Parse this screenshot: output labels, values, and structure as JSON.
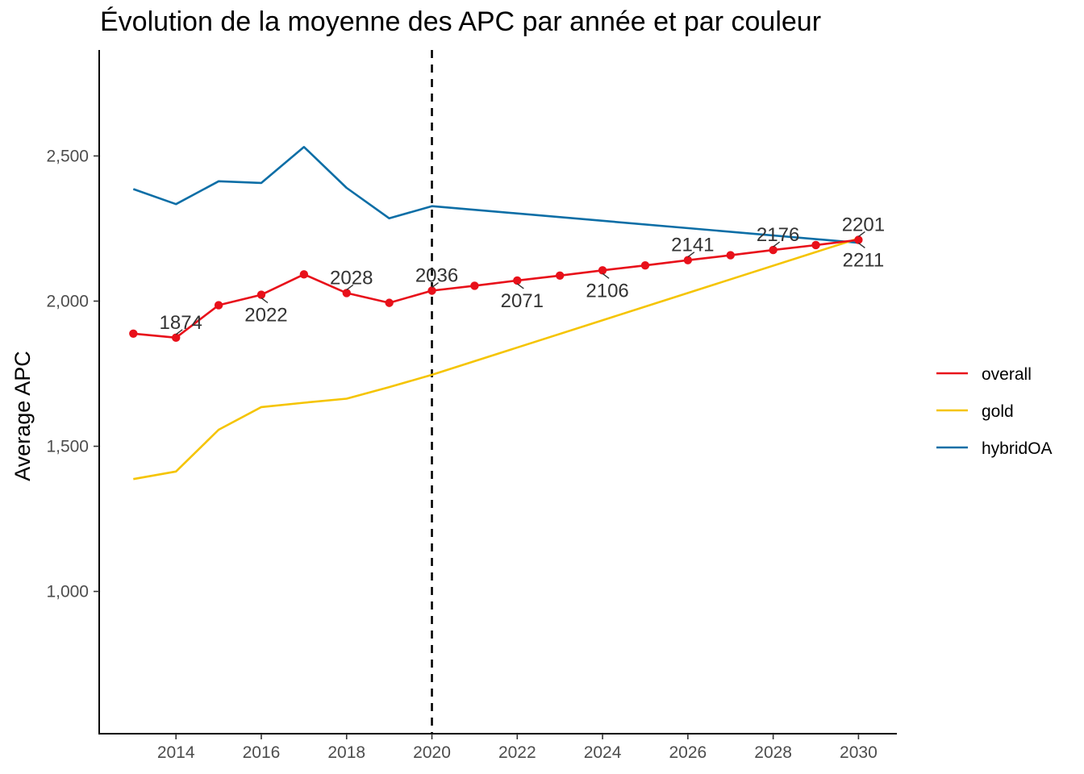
{
  "chart_data": {
    "type": "line",
    "title": "Évolution de la moyenne des APC par année et par couleur",
    "xlabel": "",
    "ylabel": "Average APC",
    "xlim": [
      2012.2,
      2030.9
    ],
    "ylim": [
      510,
      2865
    ],
    "x_ticks": [
      2014,
      2016,
      2018,
      2020,
      2022,
      2024,
      2026,
      2028,
      2030
    ],
    "x_tick_labels": [
      "2014",
      "2016",
      "2018",
      "2020",
      "2022",
      "2024",
      "2026",
      "2028",
      "2030"
    ],
    "y_ticks": [
      1000,
      1500,
      2000,
      2500
    ],
    "y_tick_labels": [
      "1,000",
      "1,500",
      "2,000",
      "2,500"
    ],
    "grid": false,
    "legend_position": "right",
    "vline": {
      "x": 2020,
      "style": "dashed",
      "color": "#000000"
    },
    "series": [
      {
        "name": "overall",
        "color": "#e8101a",
        "markers": true,
        "points": [
          [
            2013,
            1888
          ],
          [
            2014,
            1874
          ],
          [
            2015,
            1986
          ],
          [
            2016,
            2022
          ],
          [
            2017,
            2092
          ],
          [
            2018,
            2028
          ],
          [
            2019,
            1994
          ],
          [
            2020,
            2036
          ],
          [
            2021,
            2053
          ],
          [
            2022,
            2071
          ],
          [
            2023,
            2088
          ],
          [
            2024,
            2106
          ],
          [
            2025,
            2123
          ],
          [
            2026,
            2141
          ],
          [
            2027,
            2158
          ],
          [
            2028,
            2176
          ],
          [
            2029,
            2193
          ],
          [
            2030,
            2211
          ]
        ]
      },
      {
        "name": "gold",
        "color": "#f5c400",
        "markers": false,
        "points": [
          [
            2013,
            1387
          ],
          [
            2014,
            1413
          ],
          [
            2015,
            1557
          ],
          [
            2016,
            1635
          ],
          [
            2017,
            1650
          ],
          [
            2018,
            1664
          ],
          [
            2019,
            1704
          ],
          [
            2020,
            1746
          ],
          [
            2030,
            2216
          ]
        ]
      },
      {
        "name": "hybridOA",
        "color": "#0c6ea6",
        "markers": false,
        "points": [
          [
            2013,
            2386
          ],
          [
            2014,
            2334
          ],
          [
            2015,
            2413
          ],
          [
            2016,
            2407
          ],
          [
            2017,
            2531
          ],
          [
            2018,
            2390
          ],
          [
            2019,
            2285
          ],
          [
            2020,
            2327
          ],
          [
            2030,
            2201
          ]
        ]
      }
    ],
    "annotations": [
      {
        "text": "1874",
        "x": 2014,
        "y": 1874,
        "pos": "above"
      },
      {
        "text": "2022",
        "x": 2016,
        "y": 2022,
        "pos": "below"
      },
      {
        "text": "2028",
        "x": 2018,
        "y": 2028,
        "pos": "above"
      },
      {
        "text": "2036",
        "x": 2020,
        "y": 2036,
        "pos": "above"
      },
      {
        "text": "2071",
        "x": 2022,
        "y": 2071,
        "pos": "below"
      },
      {
        "text": "2106",
        "x": 2024,
        "y": 2106,
        "pos": "below"
      },
      {
        "text": "2141",
        "x": 2026,
        "y": 2141,
        "pos": "above"
      },
      {
        "text": "2176",
        "x": 2028,
        "y": 2176,
        "pos": "above"
      },
      {
        "text": "2201",
        "x": 2030,
        "y": 2211,
        "pos": "above"
      },
      {
        "text": "2211",
        "x": 2030,
        "y": 2211,
        "pos": "below"
      }
    ]
  }
}
